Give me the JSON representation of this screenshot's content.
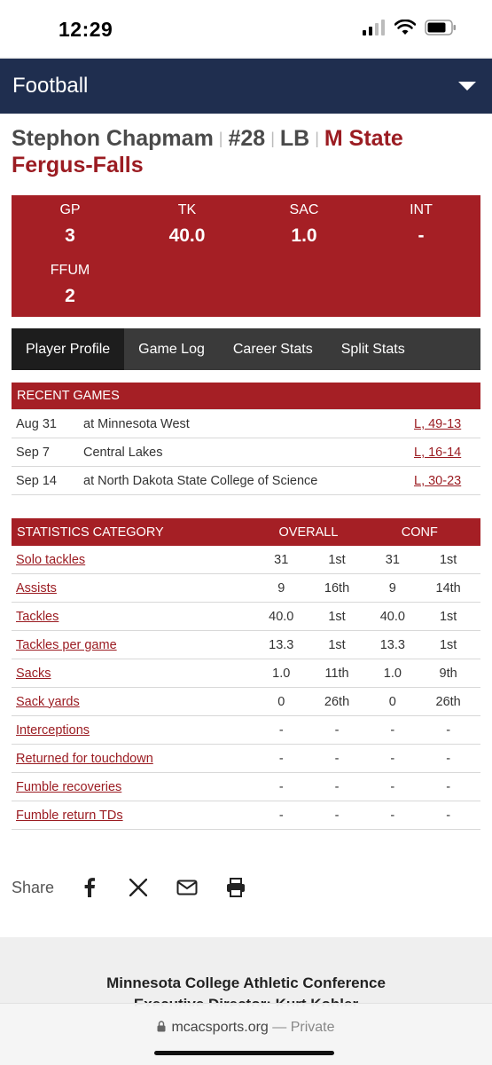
{
  "status_bar": {
    "time": "12:29"
  },
  "header": {
    "sport": "Football"
  },
  "player": {
    "name": "Stephon Chapmam",
    "number": "#28",
    "position": "LB",
    "team_line1": "M State",
    "team_line2": "Fergus-Falls"
  },
  "summary_stats": [
    {
      "label": "GP",
      "value": "3"
    },
    {
      "label": "TK",
      "value": "40.0"
    },
    {
      "label": "SAC",
      "value": "1.0"
    },
    {
      "label": "INT",
      "value": "-"
    },
    {
      "label": "FFUM",
      "value": "2"
    }
  ],
  "tabs": [
    {
      "label": "Player Profile",
      "active": true
    },
    {
      "label": "Game Log"
    },
    {
      "label": "Career Stats"
    },
    {
      "label": "Split Stats"
    }
  ],
  "recent_games": {
    "title": "RECENT GAMES",
    "rows": [
      {
        "date": "Aug 31",
        "opponent": "at Minnesota West",
        "result": "L, 49-13"
      },
      {
        "date": "Sep 7",
        "opponent": "Central Lakes",
        "result": "L, 16-14"
      },
      {
        "date": "Sep 14",
        "opponent": "at North Dakota State College of Science",
        "result": "L, 30-23"
      }
    ]
  },
  "stats_table": {
    "header_category": "STATISTICS CATEGORY",
    "header_overall": "OVERALL",
    "header_conf": "CONF",
    "rows": [
      {
        "name": "Solo tackles",
        "ov": "31",
        "ov_rank": "1st",
        "cf": "31",
        "cf_rank": "1st"
      },
      {
        "name": "Assists",
        "ov": "9",
        "ov_rank": "16th",
        "cf": "9",
        "cf_rank": "14th"
      },
      {
        "name": "Tackles",
        "ov": "40.0",
        "ov_rank": "1st",
        "cf": "40.0",
        "cf_rank": "1st"
      },
      {
        "name": "Tackles per game",
        "ov": "13.3",
        "ov_rank": "1st",
        "cf": "13.3",
        "cf_rank": "1st"
      },
      {
        "name": "Sacks",
        "ov": "1.0",
        "ov_rank": "11th",
        "cf": "1.0",
        "cf_rank": "9th"
      },
      {
        "name": "Sack yards",
        "ov": "0",
        "ov_rank": "26th",
        "cf": "0",
        "cf_rank": "26th"
      },
      {
        "name": "Interceptions",
        "ov": "-",
        "ov_rank": "-",
        "cf": "-",
        "cf_rank": "-"
      },
      {
        "name": "Returned for touchdown",
        "ov": "-",
        "ov_rank": "-",
        "cf": "-",
        "cf_rank": "-"
      },
      {
        "name": "Fumble recoveries",
        "ov": "-",
        "ov_rank": "-",
        "cf": "-",
        "cf_rank": "-"
      },
      {
        "name": "Fumble return TDs",
        "ov": "-",
        "ov_rank": "-",
        "cf": "-",
        "cf_rank": "-"
      }
    ]
  },
  "share": {
    "label": "Share",
    "icons": [
      "facebook-icon",
      "x-icon",
      "email-icon",
      "print-icon"
    ]
  },
  "footer": {
    "org": "Minnesota College Athletic Conference",
    "director": "Executive Director: Kurt Kohler"
  },
  "browser": {
    "url": "mcacsports.org",
    "mode": "— Private"
  },
  "colors": {
    "navy": "#1f2e4f",
    "red": "#a51f25",
    "team_red": "#9b1c22",
    "tab_dark": "#3a3a3a"
  }
}
